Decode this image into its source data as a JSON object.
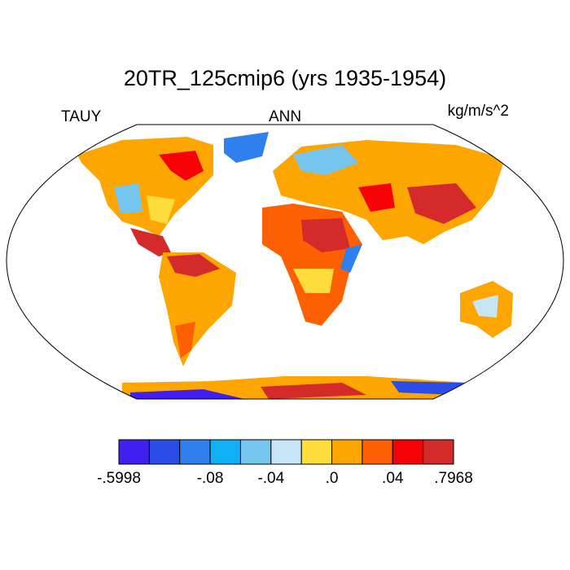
{
  "title": "20TR_125cmip6 (yrs 1935-1954)",
  "left_label": "TAUY",
  "center_label": "ANN",
  "right_label": "kg/m/s^2",
  "colorbar": {
    "colors": [
      "#4020f0",
      "#2a4de8",
      "#2f7fef",
      "#0fb0f5",
      "#74c6ef",
      "#c6e6f7",
      "#fedd3a",
      "#fda602",
      "#fd6002",
      "#f50206",
      "#d42a2a"
    ],
    "boundary_labels": [
      "-.5998",
      null,
      null,
      "-.08",
      null,
      "-.04",
      null,
      ".0",
      null,
      ".04",
      null,
      ".7968"
    ]
  }
}
